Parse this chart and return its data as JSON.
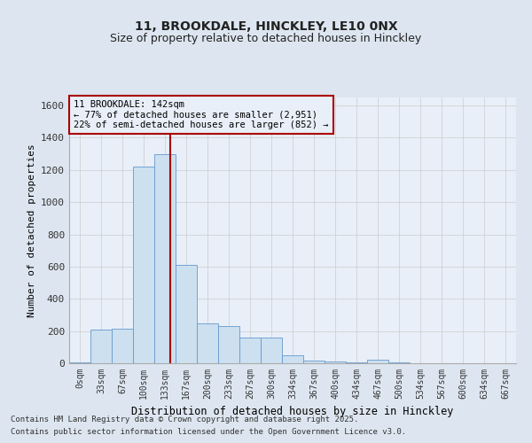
{
  "title1": "11, BROOKDALE, HINCKLEY, LE10 0NX",
  "title2": "Size of property relative to detached houses in Hinckley",
  "xlabel": "Distribution of detached houses by size in Hinckley",
  "ylabel": "Number of detached properties",
  "bins": [
    "0sqm",
    "33sqm",
    "67sqm",
    "100sqm",
    "133sqm",
    "167sqm",
    "200sqm",
    "233sqm",
    "267sqm",
    "300sqm",
    "334sqm",
    "367sqm",
    "400sqm",
    "434sqm",
    "467sqm",
    "500sqm",
    "534sqm",
    "567sqm",
    "600sqm",
    "634sqm",
    "667sqm"
  ],
  "bar_heights": [
    5,
    210,
    215,
    1220,
    1300,
    610,
    245,
    230,
    160,
    160,
    50,
    15,
    10,
    8,
    20,
    5,
    0,
    0,
    0,
    0,
    0
  ],
  "bar_color": "#cce0f0",
  "bar_edge_color": "#6699cc",
  "annotation_line1": "11 BROOKDALE: 142sqm",
  "annotation_line2": "← 77% of detached houses are smaller (2,951)",
  "annotation_line3": "22% of semi-detached houses are larger (852) →",
  "vline_color": "#aa0000",
  "annotation_box_edge_color": "#aa0000",
  "grid_color": "#cccccc",
  "background_color": "#dde6f0",
  "plot_bg_color": "#e8eff8",
  "ylim": [
    0,
    1650
  ],
  "yticks": [
    0,
    200,
    400,
    600,
    800,
    1000,
    1200,
    1400,
    1600
  ],
  "footer1": "Contains HM Land Registry data © Crown copyright and database right 2025.",
  "footer2": "Contains public sector information licensed under the Open Government Licence v3.0."
}
